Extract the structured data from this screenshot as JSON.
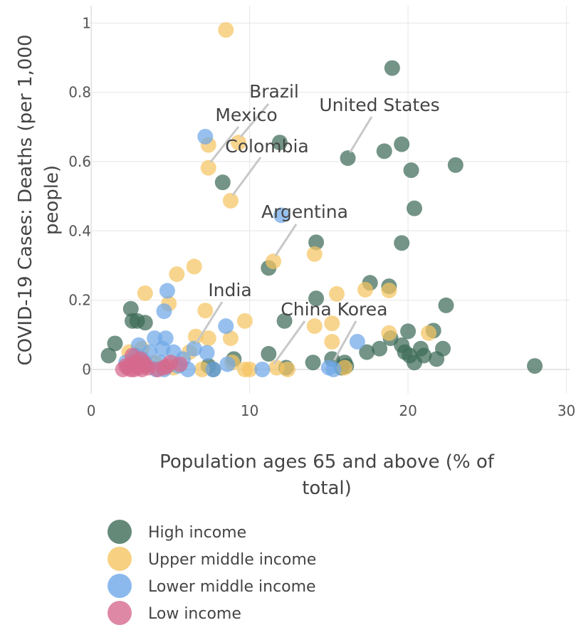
{
  "chart_data": {
    "type": "scatter",
    "xlabel": "Population ages 65 and above (% of total)",
    "ylabel": "COVID-19 Cases: Deaths (per 1,000 people)",
    "xlim": [
      -0.5,
      30.2
    ],
    "ylim": [
      -0.07,
      1.05
    ],
    "x_ticks": [
      0,
      10,
      20,
      30
    ],
    "y_ticks": [
      0,
      0.2,
      0.4,
      0.6,
      0.8,
      1
    ],
    "x_tick_labels": [
      "0",
      "10",
      "20",
      "30"
    ],
    "y_tick_labels": [
      "0",
      "0.2",
      "0.4",
      "0.6",
      "0.8",
      "1"
    ],
    "grid": true,
    "legend_position": "bottom-left",
    "series": [
      {
        "name": "High income",
        "color": "#3d6b57",
        "points": [
          [
            19.0,
            0.87
          ],
          [
            16.2,
            0.61
          ],
          [
            18.5,
            0.63
          ],
          [
            19.6,
            0.65
          ],
          [
            20.2,
            0.575
          ],
          [
            23.0,
            0.59
          ],
          [
            20.4,
            0.465
          ],
          [
            19.6,
            0.365
          ],
          [
            11.9,
            0.655
          ],
          [
            8.3,
            0.54
          ],
          [
            14.2,
            0.367
          ],
          [
            11.2,
            0.293
          ],
          [
            17.6,
            0.25
          ],
          [
            18.8,
            0.24
          ],
          [
            22.4,
            0.185
          ],
          [
            14.2,
            0.205
          ],
          [
            12.2,
            0.14
          ],
          [
            2.5,
            0.175
          ],
          [
            2.6,
            0.14
          ],
          [
            2.9,
            0.14
          ],
          [
            3.4,
            0.135
          ],
          [
            1.5,
            0.075
          ],
          [
            1.1,
            0.04
          ],
          [
            20.0,
            0.11
          ],
          [
            21.6,
            0.112
          ],
          [
            18.9,
            0.09
          ],
          [
            19.6,
            0.07
          ],
          [
            20.8,
            0.06
          ],
          [
            22.2,
            0.06
          ],
          [
            20.1,
            0.04
          ],
          [
            21.0,
            0.04
          ],
          [
            19.8,
            0.05
          ],
          [
            20.4,
            0.02
          ],
          [
            21.8,
            0.03
          ],
          [
            17.4,
            0.05
          ],
          [
            18.2,
            0.06
          ],
          [
            15.2,
            0.03
          ],
          [
            16.0,
            0.02
          ],
          [
            16.1,
            0.01
          ],
          [
            14.0,
            0.02
          ],
          [
            11.2,
            0.045
          ],
          [
            9.0,
            0.03
          ],
          [
            28.0,
            0.01
          ],
          [
            12.3,
            0.005
          ],
          [
            7.4,
            0.01
          ],
          [
            7.7,
            0.0
          ],
          [
            15.8,
            0.005
          ]
        ]
      },
      {
        "name": "Upper middle income",
        "color": "#f5c562",
        "points": [
          [
            8.5,
            0.98
          ],
          [
            9.3,
            0.655
          ],
          [
            7.4,
            0.648
          ],
          [
            7.4,
            0.582
          ],
          [
            8.8,
            0.487
          ],
          [
            11.5,
            0.312
          ],
          [
            14.1,
            0.333
          ],
          [
            6.5,
            0.297
          ],
          [
            5.4,
            0.275
          ],
          [
            3.4,
            0.22
          ],
          [
            15.5,
            0.218
          ],
          [
            17.3,
            0.23
          ],
          [
            18.8,
            0.228
          ],
          [
            4.9,
            0.19
          ],
          [
            7.2,
            0.17
          ],
          [
            9.7,
            0.14
          ],
          [
            14.1,
            0.125
          ],
          [
            15.2,
            0.133
          ],
          [
            18.8,
            0.105
          ],
          [
            21.3,
            0.105
          ],
          [
            6.6,
            0.095
          ],
          [
            7.4,
            0.09
          ],
          [
            8.8,
            0.09
          ],
          [
            15.2,
            0.08
          ],
          [
            9.7,
            0.0
          ],
          [
            10.0,
            0.0
          ],
          [
            11.7,
            0.005
          ],
          [
            12.4,
            0.0
          ],
          [
            16.0,
            0.005
          ],
          [
            5.2,
            0.005
          ],
          [
            4.0,
            0.02
          ],
          [
            2.4,
            0.05
          ],
          [
            3.2,
            0.06
          ],
          [
            6.2,
            0.05
          ],
          [
            8.9,
            0.02
          ],
          [
            7.0,
            0.0
          ]
        ]
      },
      {
        "name": "Lower middle income",
        "color": "#6fa8e8",
        "points": [
          [
            7.2,
            0.672
          ],
          [
            12.0,
            0.445
          ],
          [
            4.8,
            0.227
          ],
          [
            4.6,
            0.168
          ],
          [
            8.5,
            0.125
          ],
          [
            16.8,
            0.08
          ],
          [
            4.0,
            0.09
          ],
          [
            4.7,
            0.09
          ],
          [
            3.0,
            0.07
          ],
          [
            3.7,
            0.05
          ],
          [
            6.5,
            0.06
          ],
          [
            5.2,
            0.05
          ],
          [
            7.3,
            0.048
          ],
          [
            4.5,
            0.06
          ],
          [
            2.8,
            0.04
          ],
          [
            3.2,
            0.03
          ],
          [
            2.2,
            0.02
          ],
          [
            3.5,
            0.015
          ],
          [
            4.4,
            0.02
          ],
          [
            5.8,
            0.03
          ],
          [
            6.1,
            0.0
          ],
          [
            7.7,
            0.0
          ],
          [
            8.6,
            0.015
          ],
          [
            10.8,
            0.0
          ],
          [
            15.0,
            0.005
          ],
          [
            15.3,
            0.0
          ],
          [
            4.1,
            0.0
          ],
          [
            4.6,
            0.0
          ],
          [
            5.5,
            0.01
          ]
        ]
      },
      {
        "name": "Low income",
        "color": "#d66a8e",
        "points": [
          [
            2.0,
            0.0
          ],
          [
            2.3,
            0.005
          ],
          [
            2.5,
            0.015
          ],
          [
            2.6,
            0.04
          ],
          [
            2.7,
            0.0
          ],
          [
            2.8,
            0.02
          ],
          [
            2.9,
            0.01
          ],
          [
            3.0,
            0.005
          ],
          [
            3.1,
            0.03
          ],
          [
            3.2,
            0.0
          ],
          [
            3.4,
            0.01
          ],
          [
            3.6,
            0.005
          ],
          [
            4.6,
            0.005
          ],
          [
            4.8,
            0.01
          ],
          [
            5.0,
            0.02
          ],
          [
            5.6,
            0.015
          ],
          [
            2.5,
            0.0
          ],
          [
            3.3,
            0.02
          ],
          [
            2.2,
            0.01
          ],
          [
            4.2,
            0.0
          ]
        ]
      }
    ],
    "annotations": [
      {
        "text": "Brazil",
        "x": 9.3,
        "y": 0.655
      },
      {
        "text": "Mexico",
        "x": 7.4,
        "y": 0.582
      },
      {
        "text": "United States",
        "x": 16.2,
        "y": 0.61
      },
      {
        "text": "Colombia",
        "x": 8.8,
        "y": 0.487
      },
      {
        "text": "Argentina",
        "x": 11.5,
        "y": 0.312
      },
      {
        "text": "India",
        "x": 6.5,
        "y": 0.06
      },
      {
        "text": "China",
        "x": 11.4,
        "y": 0.0
      },
      {
        "text": "Korea",
        "x": 15.2,
        "y": 0.01
      }
    ]
  }
}
